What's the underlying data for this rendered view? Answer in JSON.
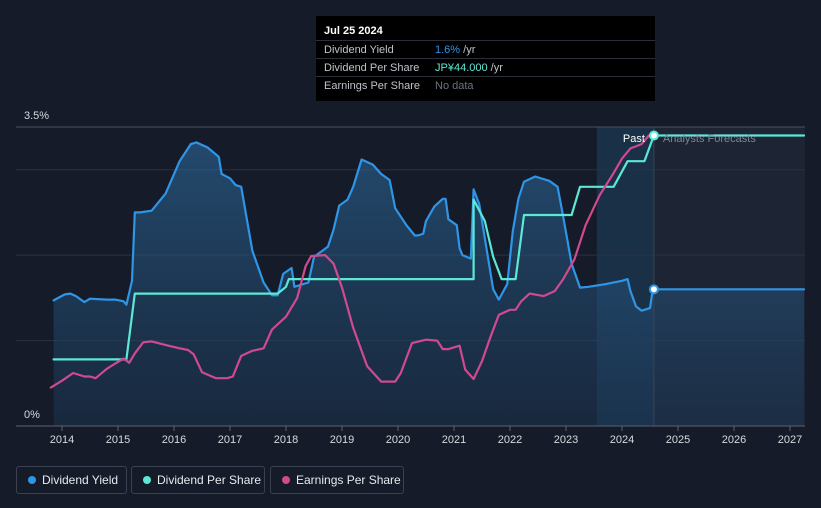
{
  "chart_data": {
    "type": "line",
    "title": "",
    "xlabel": "",
    "ylabel": "",
    "y_tick_labels": [
      "3.5%",
      "0%"
    ],
    "y_unit": "%",
    "ylim": [
      0,
      3.5
    ],
    "xlim": [
      2013.8,
      2027.25
    ],
    "x_ticks": [
      2014,
      2015,
      2016,
      2017,
      2018,
      2019,
      2020,
      2021,
      2022,
      2023,
      2024,
      2025,
      2026,
      2027
    ],
    "x_tick_labels": [
      "2014",
      "2015",
      "2016",
      "2017",
      "2018",
      "2019",
      "2020",
      "2021",
      "2022",
      "2023",
      "2024",
      "2025",
      "2026",
      "2027"
    ],
    "grid": "horizontal",
    "legend_position": "bottom-left",
    "annotations": {
      "past_label": "Past",
      "forecast_label": "Analysts Forecasts",
      "forecast_start_year": 2024.57,
      "highlight_start_year": 2023.55
    },
    "series": [
      {
        "name": "Dividend Yield",
        "color": "#2f95e6",
        "fill": true,
        "points": [
          [
            2013.85,
            1.47
          ],
          [
            2014.05,
            1.54
          ],
          [
            2014.15,
            1.55
          ],
          [
            2014.25,
            1.52
          ],
          [
            2014.4,
            1.45
          ],
          [
            2014.5,
            1.49
          ],
          [
            2014.8,
            1.48
          ],
          [
            2014.95,
            1.48
          ],
          [
            2015.1,
            1.46
          ],
          [
            2015.15,
            1.42
          ],
          [
            2015.25,
            1.7
          ],
          [
            2015.3,
            2.5
          ],
          [
            2015.4,
            2.5
          ],
          [
            2015.6,
            2.52
          ],
          [
            2015.85,
            2.72
          ],
          [
            2016.1,
            3.1
          ],
          [
            2016.3,
            3.3
          ],
          [
            2016.4,
            3.32
          ],
          [
            2016.6,
            3.26
          ],
          [
            2016.8,
            3.15
          ],
          [
            2016.85,
            2.95
          ],
          [
            2017.0,
            2.9
          ],
          [
            2017.1,
            2.82
          ],
          [
            2017.2,
            2.8
          ],
          [
            2017.4,
            2.05
          ],
          [
            2017.6,
            1.68
          ],
          [
            2017.75,
            1.53
          ],
          [
            2017.85,
            1.53
          ],
          [
            2017.95,
            1.78
          ],
          [
            2018.1,
            1.85
          ],
          [
            2018.15,
            1.63
          ],
          [
            2018.3,
            1.66
          ],
          [
            2018.4,
            1.68
          ],
          [
            2018.5,
            1.98
          ],
          [
            2018.75,
            2.1
          ],
          [
            2018.85,
            2.3
          ],
          [
            2018.95,
            2.58
          ],
          [
            2019.1,
            2.65
          ],
          [
            2019.2,
            2.8
          ],
          [
            2019.35,
            3.12
          ],
          [
            2019.55,
            3.06
          ],
          [
            2019.7,
            2.95
          ],
          [
            2019.85,
            2.88
          ],
          [
            2019.95,
            2.55
          ],
          [
            2020.15,
            2.35
          ],
          [
            2020.3,
            2.23
          ],
          [
            2020.35,
            2.23
          ],
          [
            2020.45,
            2.25
          ],
          [
            2020.5,
            2.4
          ],
          [
            2020.65,
            2.57
          ],
          [
            2020.8,
            2.66
          ],
          [
            2020.85,
            2.66
          ],
          [
            2020.9,
            2.42
          ],
          [
            2021.05,
            2.35
          ],
          [
            2021.1,
            2.08
          ],
          [
            2021.15,
            2.0
          ],
          [
            2021.3,
            1.96
          ],
          [
            2021.35,
            2.77
          ],
          [
            2021.45,
            2.6
          ],
          [
            2021.55,
            2.2
          ],
          [
            2021.7,
            1.6
          ],
          [
            2021.8,
            1.48
          ],
          [
            2021.95,
            1.66
          ],
          [
            2022.05,
            2.28
          ],
          [
            2022.15,
            2.66
          ],
          [
            2022.25,
            2.86
          ],
          [
            2022.45,
            2.92
          ],
          [
            2022.7,
            2.87
          ],
          [
            2022.85,
            2.8
          ],
          [
            2022.95,
            2.45
          ],
          [
            2023.1,
            1.9
          ],
          [
            2023.25,
            1.62
          ],
          [
            2023.4,
            1.63
          ],
          [
            2023.7,
            1.66
          ],
          [
            2024.0,
            1.7
          ],
          [
            2024.1,
            1.72
          ],
          [
            2024.15,
            1.58
          ],
          [
            2024.25,
            1.4
          ],
          [
            2024.35,
            1.35
          ],
          [
            2024.5,
            1.38
          ],
          [
            2024.55,
            1.6
          ],
          [
            2024.57,
            1.6
          ],
          [
            2027.25,
            1.6
          ]
        ]
      },
      {
        "name": "Dividend Per Share",
        "color": "#5ce8d4",
        "fill": false,
        "points": [
          [
            2013.85,
            0.78
          ],
          [
            2015.15,
            0.78
          ],
          [
            2015.3,
            1.55
          ],
          [
            2017.85,
            1.55
          ],
          [
            2018.0,
            1.63
          ],
          [
            2018.05,
            1.72
          ],
          [
            2021.35,
            1.72
          ],
          [
            2021.35,
            2.65
          ],
          [
            2021.55,
            2.4
          ],
          [
            2021.7,
            1.98
          ],
          [
            2021.85,
            1.72
          ],
          [
            2022.1,
            1.72
          ],
          [
            2022.25,
            2.47
          ],
          [
            2022.5,
            2.47
          ],
          [
            2023.1,
            2.47
          ],
          [
            2023.25,
            2.8
          ],
          [
            2023.85,
            2.8
          ],
          [
            2024.1,
            3.1
          ],
          [
            2024.4,
            3.1
          ],
          [
            2024.57,
            3.4
          ],
          [
            2027.25,
            3.4
          ]
        ]
      },
      {
        "name": "Earnings Per Share",
        "color": "#cf4a8f",
        "fill": false,
        "points": [
          [
            2013.8,
            0.45
          ],
          [
            2014.0,
            0.53
          ],
          [
            2014.2,
            0.62
          ],
          [
            2014.4,
            0.58
          ],
          [
            2014.5,
            0.58
          ],
          [
            2014.6,
            0.56
          ],
          [
            2014.8,
            0.67
          ],
          [
            2014.95,
            0.73
          ],
          [
            2015.1,
            0.79
          ],
          [
            2015.2,
            0.74
          ],
          [
            2015.3,
            0.85
          ],
          [
            2015.45,
            0.98
          ],
          [
            2015.6,
            0.99
          ],
          [
            2015.9,
            0.94
          ],
          [
            2016.1,
            0.91
          ],
          [
            2016.25,
            0.89
          ],
          [
            2016.35,
            0.84
          ],
          [
            2016.5,
            0.63
          ],
          [
            2016.75,
            0.56
          ],
          [
            2016.95,
            0.56
          ],
          [
            2017.05,
            0.58
          ],
          [
            2017.2,
            0.82
          ],
          [
            2017.4,
            0.88
          ],
          [
            2017.6,
            0.91
          ],
          [
            2017.75,
            1.13
          ],
          [
            2018.0,
            1.28
          ],
          [
            2018.2,
            1.5
          ],
          [
            2018.35,
            1.87
          ],
          [
            2018.45,
            1.99
          ],
          [
            2018.7,
            2.0
          ],
          [
            2018.85,
            1.9
          ],
          [
            2019.0,
            1.62
          ],
          [
            2019.2,
            1.15
          ],
          [
            2019.45,
            0.7
          ],
          [
            2019.7,
            0.52
          ],
          [
            2019.95,
            0.52
          ],
          [
            2020.05,
            0.62
          ],
          [
            2020.25,
            0.97
          ],
          [
            2020.5,
            1.01
          ],
          [
            2020.7,
            1.0
          ],
          [
            2020.8,
            0.9
          ],
          [
            2020.9,
            0.9
          ],
          [
            2021.1,
            0.94
          ],
          [
            2021.2,
            0.66
          ],
          [
            2021.35,
            0.55
          ],
          [
            2021.5,
            0.76
          ],
          [
            2021.65,
            1.04
          ],
          [
            2021.8,
            1.3
          ],
          [
            2022.0,
            1.36
          ],
          [
            2022.1,
            1.36
          ],
          [
            2022.2,
            1.46
          ],
          [
            2022.35,
            1.55
          ],
          [
            2022.6,
            1.52
          ],
          [
            2022.8,
            1.58
          ],
          [
            2022.95,
            1.72
          ],
          [
            2023.15,
            1.95
          ],
          [
            2023.35,
            2.35
          ],
          [
            2023.6,
            2.7
          ],
          [
            2023.85,
            2.96
          ],
          [
            2024.0,
            3.13
          ],
          [
            2024.15,
            3.25
          ],
          [
            2024.35,
            3.3
          ],
          [
            2024.48,
            3.4
          ],
          [
            2024.57,
            3.4
          ]
        ]
      }
    ],
    "end_markers": [
      {
        "series": "Dividend Per Share",
        "x": 2024.57,
        "y": 3.4
      },
      {
        "series": "Dividend Yield",
        "x": 2024.57,
        "y": 1.6
      }
    ]
  },
  "tooltip": {
    "date": "Jul 25 2024",
    "rows": [
      {
        "label": "Dividend Yield",
        "value": "1.6%",
        "unit": " /yr",
        "color": "#2f95e6"
      },
      {
        "label": "Dividend Per Share",
        "value": "JP¥44.000",
        "unit": " /yr",
        "color": "#5ce8d4"
      },
      {
        "label": "Earnings Per Share",
        "value": "No data",
        "unit": "",
        "color": "#6b7280"
      }
    ]
  },
  "legend": [
    {
      "label": "Dividend Yield",
      "color": "#2f95e6"
    },
    {
      "label": "Dividend Per Share",
      "color": "#5ce8d4"
    },
    {
      "label": "Earnings Per Share",
      "color": "#cf4a8f"
    }
  ]
}
